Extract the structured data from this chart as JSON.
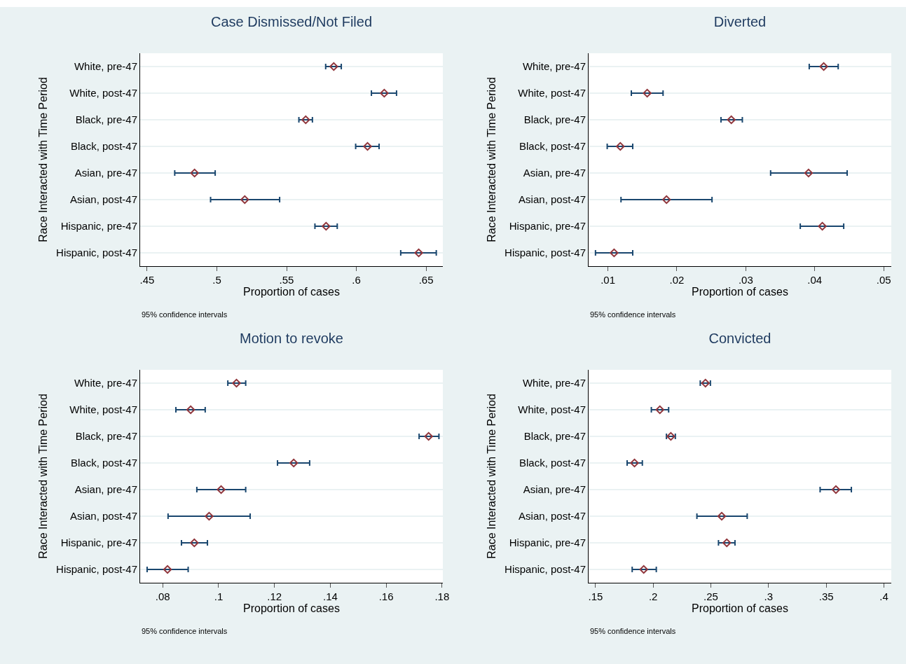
{
  "chart_data": [
    {
      "type": "scatter",
      "orientation": "horizontal",
      "title": "Case Dismissed/Not Filed",
      "xlabel": "Proportion of cases",
      "ylabel": "Race Interacted with Time Period",
      "annotations": [
        "95% confidence intervals"
      ],
      "marker": "diamond",
      "grid": "y",
      "color": "#90353b",
      "categories": [
        "White, pre-47",
        "White, post-47",
        "Black, pre-47",
        "Black, post-47",
        "Asian, pre-47",
        "Asian, post-47",
        "Hispanic, pre-47",
        "Hispanic, post-47"
      ],
      "values": [
        0.5838,
        0.62,
        0.5637,
        0.608,
        0.484,
        0.52,
        0.5783,
        0.6447
      ],
      "errors": [
        [
          0.578,
          0.5892
        ],
        [
          0.6108,
          0.6288
        ],
        [
          0.5588,
          0.5685
        ],
        [
          0.5995,
          0.6163
        ],
        [
          0.4698,
          0.4988
        ],
        [
          0.4955,
          0.545
        ],
        [
          0.5703,
          0.5863
        ],
        [
          0.6318,
          0.6573
        ]
      ],
      "xlim": [
        0.445,
        0.662
      ],
      "xticks": [
        {
          "value": 0.45,
          "label": ".45"
        },
        {
          "value": 0.5,
          "label": ".5"
        },
        {
          "value": 0.55,
          "label": ".55"
        },
        {
          "value": 0.6,
          "label": ".6"
        },
        {
          "value": 0.65,
          "label": ".65"
        }
      ]
    },
    {
      "type": "scatter",
      "orientation": "horizontal",
      "title": "Diverted",
      "xlabel": "Proportion of cases",
      "ylabel": "Race Interacted with Time Period",
      "annotations": [
        "95% confidence intervals"
      ],
      "marker": "diamond",
      "grid": "y",
      "color": "#90353b",
      "categories": [
        "White, pre-47",
        "White, post-47",
        "Black, pre-47",
        "Black, post-47",
        "Asian, pre-47",
        "Asian, post-47",
        "Hispanic, pre-47",
        "Hispanic, post-47"
      ],
      "values": [
        0.0413,
        0.0157,
        0.0279,
        0.0118,
        0.0391,
        0.0185,
        0.0411,
        0.0109
      ],
      "errors": [
        [
          0.0392,
          0.0434
        ],
        [
          0.0134,
          0.018
        ],
        [
          0.0264,
          0.0295
        ],
        [
          0.0099,
          0.0136
        ],
        [
          0.0336,
          0.0447
        ],
        [
          0.0119,
          0.0251
        ],
        [
          0.0379,
          0.0442
        ],
        [
          0.0082,
          0.0136
        ]
      ],
      "xlim": [
        0.0072,
        0.0511
      ],
      "xticks": [
        {
          "value": 0.01,
          "label": ".01"
        },
        {
          "value": 0.02,
          "label": ".02"
        },
        {
          "value": 0.03,
          "label": ".03"
        },
        {
          "value": 0.04,
          "label": ".04"
        },
        {
          "value": 0.05,
          "label": ".05"
        }
      ]
    },
    {
      "type": "scatter",
      "orientation": "horizontal",
      "title": "Motion to revoke",
      "xlabel": "Proportion of cases",
      "ylabel": "Race Interacted with Time Period",
      "annotations": [
        "95% confidence intervals"
      ],
      "marker": "diamond",
      "grid": "y",
      "color": "#90353b",
      "categories": [
        "White, pre-47",
        "White, post-47",
        "Black, pre-47",
        "Black, post-47",
        "Asian, pre-47",
        "Asian, post-47",
        "Hispanic, pre-47",
        "Hispanic, post-47"
      ],
      "values": [
        0.1064,
        0.09,
        0.1752,
        0.1269,
        0.1009,
        0.0966,
        0.0913,
        0.0817
      ],
      "errors": [
        [
          0.1033,
          0.1097
        ],
        [
          0.0847,
          0.0952
        ],
        [
          0.1718,
          0.1789
        ],
        [
          0.1211,
          0.1326
        ],
        [
          0.0922,
          0.1097
        ],
        [
          0.0819,
          0.1113
        ],
        [
          0.0867,
          0.096
        ],
        [
          0.0744,
          0.0891
        ]
      ],
      "xlim": [
        0.0719,
        0.1803
      ],
      "xticks": [
        {
          "value": 0.08,
          "label": ".08"
        },
        {
          "value": 0.1,
          "label": ".1"
        },
        {
          "value": 0.12,
          "label": ".12"
        },
        {
          "value": 0.14,
          "label": ".14"
        },
        {
          "value": 0.16,
          "label": ".16"
        },
        {
          "value": 0.18,
          "label": ".18"
        }
      ]
    },
    {
      "type": "scatter",
      "orientation": "horizontal",
      "title": "Convicted",
      "xlabel": "Proportion of cases",
      "ylabel": "Race Interacted with Time Period",
      "annotations": [
        "95% confidence intervals"
      ],
      "marker": "diamond",
      "grid": "y",
      "color": "#90353b",
      "categories": [
        "White, pre-47",
        "White, post-47",
        "Black, pre-47",
        "Black, post-47",
        "Asian, pre-47",
        "Asian, post-47",
        "Hispanic, pre-47",
        "Hispanic, post-47"
      ],
      "values": [
        0.2453,
        0.2058,
        0.2153,
        0.1838,
        0.3584,
        0.2594,
        0.2638,
        0.1918
      ],
      "errors": [
        [
          0.2408,
          0.2496
        ],
        [
          0.1984,
          0.2134
        ],
        [
          0.2115,
          0.2192
        ],
        [
          0.1774,
          0.1906
        ],
        [
          0.3447,
          0.3718
        ],
        [
          0.2379,
          0.2815
        ],
        [
          0.2566,
          0.2709
        ],
        [
          0.1818,
          0.2027
        ]
      ],
      "xlim": [
        0.144,
        0.4064
      ],
      "xticks": [
        {
          "value": 0.15,
          "label": ".15"
        },
        {
          "value": 0.2,
          "label": ".2"
        },
        {
          "value": 0.25,
          "label": ".25"
        },
        {
          "value": 0.3,
          "label": ".3"
        },
        {
          "value": 0.35,
          "label": ".35"
        },
        {
          "value": 0.4,
          "label": ".4"
        }
      ]
    }
  ]
}
